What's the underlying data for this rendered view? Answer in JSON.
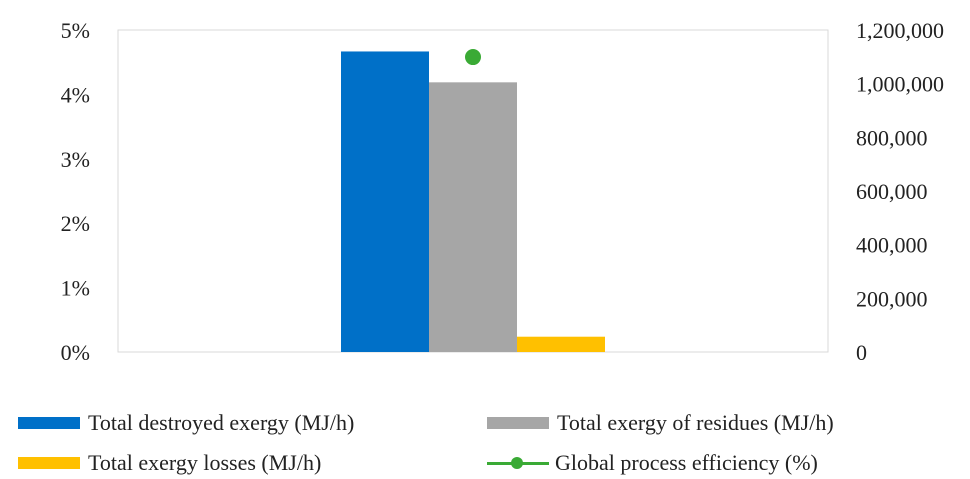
{
  "chart_data": {
    "type": "bar",
    "categories": [
      ""
    ],
    "series": [
      {
        "name": "Total destroyed exergy (MJ/h)",
        "values": [
          1120000
        ],
        "axis": "right",
        "kind": "bar",
        "color": "#0070C8"
      },
      {
        "name": "Total exergy of residues (MJ/h)",
        "values": [
          1005000
        ],
        "axis": "right",
        "kind": "bar",
        "color": "#A6A6A6"
      },
      {
        "name": "Total exergy losses (MJ/h)",
        "values": [
          57000
        ],
        "axis": "right",
        "kind": "bar",
        "color": "#FFC000"
      },
      {
        "name": "Global process efficiency (%)",
        "values": [
          4.58
        ],
        "axis": "left",
        "kind": "line-marker",
        "color": "#3AAA35"
      }
    ],
    "left_axis": {
      "ylim": [
        0,
        5
      ],
      "ticks": [
        "0%",
        "1%",
        "2%",
        "3%",
        "4%",
        "5%"
      ]
    },
    "right_axis": {
      "ylim": [
        0,
        1200000
      ],
      "ticks": [
        "0",
        "200,000",
        "400,000",
        "600,000",
        "800,000",
        "1,000,000",
        "1,200,000"
      ]
    },
    "grid": false,
    "legend_position": "bottom",
    "plot_border_color": "#D9D9D9"
  },
  "legend": {
    "item1": "Total destroyed exergy (MJ/h)",
    "item2": "Total exergy of residues (MJ/h)",
    "item3": "Total exergy losses (MJ/h)",
    "item4": "Global process efficiency (%)"
  }
}
